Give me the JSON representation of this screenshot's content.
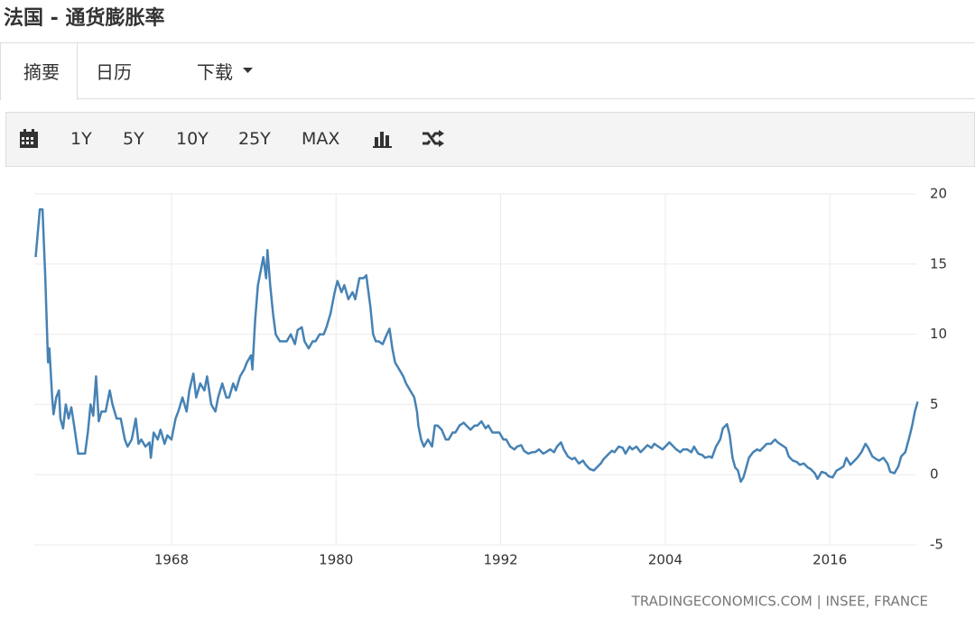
{
  "header": {
    "title": "法国 - 通货膨胀率"
  },
  "tabs": [
    "摘要",
    "日历",
    "下载"
  ],
  "toolbar": [
    "1Y",
    "5Y",
    "10Y",
    "25Y",
    "MAX"
  ],
  "chart_data": {
    "type": "line",
    "x": [
      1958.1,
      1958.4,
      1958.6,
      1958.8,
      1959.0,
      1959.1,
      1959.3,
      1959.4,
      1959.6,
      1959.8,
      1959.9,
      1960.1,
      1960.3,
      1960.5,
      1960.7,
      1960.9,
      1961.2,
      1961.7,
      1961.9,
      1962.1,
      1962.3,
      1962.5,
      1962.7,
      1962.9,
      1963.2,
      1963.5,
      1963.7,
      1964.0,
      1964.3,
      1964.6,
      1964.8,
      1965.1,
      1965.4,
      1965.6,
      1965.8,
      1966.1,
      1966.4,
      1966.5,
      1966.7,
      1967.0,
      1967.2,
      1967.5,
      1967.7,
      1968.0,
      1968.3,
      1968.5,
      1968.8,
      1969.1,
      1969.3,
      1969.6,
      1969.8,
      1970.1,
      1970.4,
      1970.6,
      1970.9,
      1971.2,
      1971.4,
      1971.7,
      1972.0,
      1972.2,
      1972.5,
      1972.7,
      1973.0,
      1973.3,
      1973.5,
      1973.8,
      1973.9,
      1974.1,
      1974.3,
      1974.5,
      1974.7,
      1974.9,
      1975.0,
      1975.2,
      1975.4,
      1975.6,
      1975.9,
      1976.2,
      1976.4,
      1976.7,
      1977.0,
      1977.2,
      1977.5,
      1977.7,
      1978.0,
      1978.3,
      1978.5,
      1978.8,
      1979.1,
      1979.3,
      1979.6,
      1979.9,
      1980.1,
      1980.4,
      1980.6,
      1980.9,
      1981.2,
      1981.4,
      1981.7,
      1982.0,
      1982.2,
      1982.5,
      1982.7,
      1982.9,
      1983.1,
      1983.4,
      1983.7,
      1983.9,
      1984.1,
      1984.3,
      1984.6,
      1984.9,
      1985.1,
      1985.4,
      1985.7,
      1985.9,
      1986.0,
      1986.2,
      1986.4,
      1986.7,
      1987.0,
      1987.2,
      1987.4,
      1987.7,
      1988.0,
      1988.2,
      1988.5,
      1988.7,
      1989.0,
      1989.3,
      1989.5,
      1989.8,
      1990.1,
      1990.3,
      1990.6,
      1990.9,
      1991.1,
      1991.4,
      1991.6,
      1991.9,
      1992.2,
      1992.4,
      1992.7,
      1993.0,
      1993.2,
      1993.5,
      1993.7,
      1994.0,
      1994.3,
      1994.5,
      1994.8,
      1995.1,
      1995.3,
      1995.6,
      1995.9,
      1996.1,
      1996.4,
      1996.6,
      1996.9,
      1997.2,
      1997.4,
      1997.7,
      1998.0,
      1998.2,
      1998.5,
      1998.8,
      1999.0,
      1999.3,
      1999.5,
      1999.8,
      2000.1,
      2000.3,
      2000.6,
      2000.9,
      2001.1,
      2001.4,
      2001.6,
      2001.9,
      2002.2,
      2002.4,
      2002.7,
      2003.0,
      2003.2,
      2003.5,
      2003.8,
      2004.0,
      2004.3,
      2004.5,
      2004.8,
      2005.1,
      2005.3,
      2005.6,
      2005.9,
      2006.1,
      2006.4,
      2006.7,
      2006.9,
      2007.2,
      2007.4,
      2007.7,
      2008.0,
      2008.2,
      2008.5,
      2008.7,
      2008.9,
      2009.1,
      2009.3,
      2009.5,
      2009.7,
      2009.9,
      2010.1,
      2010.4,
      2010.7,
      2010.9,
      2011.2,
      2011.4,
      2011.7,
      2012.0,
      2012.2,
      2012.5,
      2012.8,
      2013.0,
      2013.3,
      2013.6,
      2013.8,
      2014.1,
      2014.4,
      2014.6,
      2014.9,
      2015.1,
      2015.4,
      2015.7,
      2015.9,
      2016.2,
      2016.5,
      2016.7,
      2017.0,
      2017.2,
      2017.5,
      2017.8,
      2018.0,
      2018.3,
      2018.6,
      2018.8,
      2019.1,
      2019.4,
      2019.6,
      2019.9,
      2020.2,
      2020.4,
      2020.7,
      2021.0,
      2021.2,
      2021.5,
      2021.8,
      2022.0,
      2022.2,
      2022.4
    ],
    "values": [
      15.5,
      18.9,
      18.9,
      14,
      8,
      9,
      5.5,
      4.3,
      5.5,
      6,
      4,
      3.3,
      5,
      4,
      4.8,
      3.5,
      1.5,
      1.5,
      3,
      5,
      4.2,
      7,
      3.8,
      4.5,
      4.5,
      6,
      5,
      4,
      4,
      2.5,
      2,
      2.5,
      4,
      2.2,
      2.5,
      2,
      2.3,
      1.2,
      3,
      2.5,
      3.2,
      2.2,
      2.8,
      2.5,
      4,
      4.5,
      5.5,
      4.5,
      6,
      7.2,
      5.5,
      6.5,
      6,
      7,
      5,
      4.5,
      5.5,
      6.5,
      5.5,
      5.5,
      6.5,
      6,
      7,
      7.5,
      8,
      8.5,
      7.5,
      11,
      13.5,
      14.5,
      15.5,
      14,
      16,
      13.5,
      11.5,
      10,
      9.5,
      9.5,
      9.5,
      10,
      9.3,
      10.3,
      10.5,
      9.5,
      9,
      9.5,
      9.5,
      10,
      10,
      10.5,
      11.5,
      13,
      13.8,
      13,
      13.5,
      12.5,
      13,
      12.5,
      14,
      14,
      14.2,
      12,
      10,
      9.5,
      9.5,
      9.3,
      10,
      10.4,
      9,
      8,
      7.5,
      7,
      6.5,
      6,
      5.5,
      4.5,
      3.5,
      2.5,
      2,
      2.5,
      2,
      3.5,
      3.5,
      3.2,
      2.5,
      2.5,
      3,
      3,
      3.5,
      3.7,
      3.5,
      3.2,
      3.5,
      3.5,
      3.8,
      3.3,
      3.5,
      3,
      3,
      3,
      2.5,
      2.5,
      2,
      1.8,
      2,
      2.1,
      1.7,
      1.5,
      1.6,
      1.6,
      1.8,
      1.5,
      1.6,
      1.8,
      1.6,
      2,
      2.3,
      1.8,
      1.3,
      1.1,
      1.2,
      0.8,
      1,
      0.7,
      0.4,
      0.3,
      0.5,
      0.8,
      1.1,
      1.4,
      1.7,
      1.6,
      2,
      1.9,
      1.5,
      2,
      1.8,
      2,
      1.6,
      1.8,
      2.1,
      1.9,
      2.2,
      2,
      1.8,
      2,
      2.3,
      2.1,
      1.8,
      1.6,
      1.8,
      1.8,
      1.6,
      2,
      1.5,
      1.4,
      1.2,
      1.3,
      1.2,
      2,
      2.5,
      3.3,
      3.6,
      2.8,
      1.2,
      0.5,
      0.3,
      -0.5,
      -0.2,
      0.5,
      1.2,
      1.6,
      1.8,
      1.7,
      2,
      2.2,
      2.2,
      2.5,
      2.3,
      2.1,
      1.9,
      1.3,
      1,
      0.9,
      0.7,
      0.8,
      0.5,
      0.4,
      0.1,
      -0.3,
      0.2,
      0.1,
      -0.1,
      -0.2,
      0.3,
      0.4,
      0.6,
      1.2,
      0.7,
      1,
      1.2,
      1.6,
      2.2,
      1.9,
      1.3,
      1.1,
      1,
      1.2,
      0.8,
      0.2,
      0.1,
      0.6,
      1.3,
      1.6,
      2.7,
      3.5,
      4.5,
      5.2
    ],
    "color": "#4682b4",
    "xlim": [
      1958,
      2022.5
    ],
    "xticks": [
      1968,
      1980,
      1992,
      2004,
      2016
    ],
    "ylim": [
      -5,
      20
    ],
    "yticks": [
      -5,
      0,
      5,
      10,
      15,
      20
    ],
    "grid": true,
    "source": "TRADINGECONOMICS.COM | INSEE, FRANCE"
  }
}
